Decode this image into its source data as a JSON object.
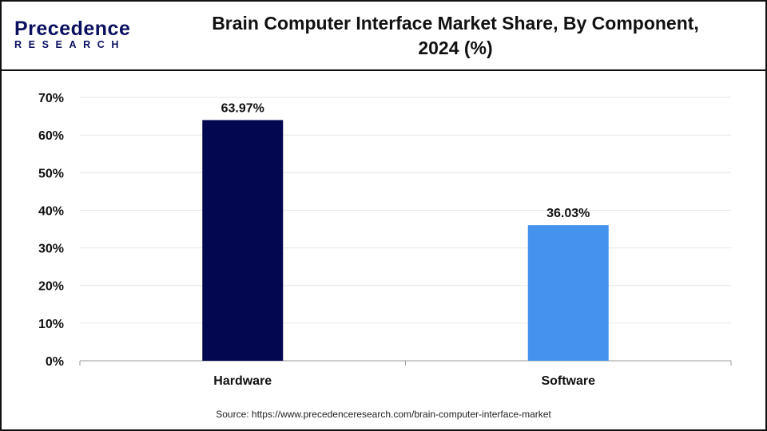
{
  "logo": {
    "line1": "Precedence",
    "line2": "RESEARCH"
  },
  "source": "Source: https://www.precedenceresearch.com/brain-computer-interface-market",
  "colors": {
    "hardware": "#03074f",
    "software": "#4592ed",
    "grid": "#e6e6e6",
    "axis": "#999999"
  },
  "chart_data": {
    "type": "bar",
    "title": "Brain Computer Interface Market Share, By Component, 2024 (%)",
    "title_lines": [
      "Brain Computer Interface Market Share, By Component,",
      "2024 (%)"
    ],
    "categories": [
      "Hardware",
      "Software"
    ],
    "values": [
      63.97,
      36.03
    ],
    "data_labels": [
      "63.97%",
      "36.03%"
    ],
    "xlabel": "",
    "ylabel": "",
    "ylim": [
      0,
      70
    ],
    "yticks": [
      0,
      10,
      20,
      30,
      40,
      50,
      60,
      70
    ],
    "ytick_labels": [
      "0%",
      "10%",
      "20%",
      "30%",
      "40%",
      "50%",
      "60%",
      "70%"
    ],
    "grid": true,
    "legend": "none"
  }
}
